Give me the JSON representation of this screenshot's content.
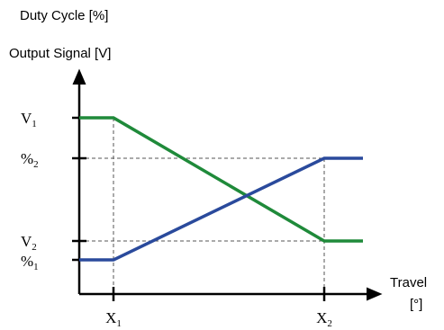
{
  "chart_data": {
    "type": "line",
    "ylabel_top": "Duty Cycle [%]",
    "ylabel": "Output Signal [V]",
    "xlabel_line1": "Travel",
    "xlabel_line2": "[°]",
    "x_ticks": [
      {
        "id": "X1",
        "base": "X",
        "sub": "1"
      },
      {
        "id": "X2",
        "base": "X",
        "sub": "2"
      }
    ],
    "y_ticks": [
      {
        "id": "V1",
        "base": "V",
        "sub": "1"
      },
      {
        "id": "P2",
        "base": "%",
        "sub": "2"
      },
      {
        "id": "V2",
        "base": "V",
        "sub": "2"
      },
      {
        "id": "P1",
        "base": "%",
        "sub": "1"
      }
    ],
    "series": [
      {
        "color": "#1f8a3a",
        "points": [
          [
            "start",
            "V1"
          ],
          [
            "X1",
            "V1"
          ],
          [
            "X2",
            "V2"
          ],
          [
            "end",
            "V2"
          ]
        ]
      },
      {
        "color": "#2a4a9c",
        "points": [
          [
            "start",
            "P1"
          ],
          [
            "X1",
            "P1"
          ],
          [
            "X2",
            "P2"
          ],
          [
            "end",
            "P2"
          ]
        ]
      }
    ],
    "dashed_guides": true,
    "axis_arrows": true,
    "colors": {
      "axis": "#000000",
      "guide": "#555555"
    }
  }
}
